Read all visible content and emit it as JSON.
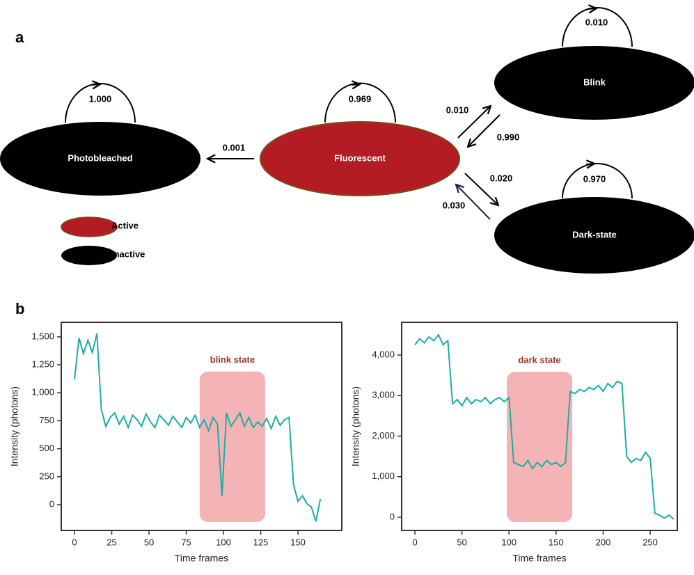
{
  "panel_labels": [
    "a",
    "b"
  ],
  "diagram": {
    "nodes": [
      "Photobleached",
      "Fluorescent",
      "Blink",
      "Dark-state"
    ],
    "self_loops": [
      "1.000",
      "0.969",
      "0.010",
      "0.970"
    ],
    "transitions": [
      "0.001",
      "0.010",
      "0.990",
      "0.020",
      "0.030"
    ],
    "legend": [
      "Active",
      "Inactive"
    ]
  },
  "chart_data": [
    {
      "type": "line",
      "x_label": "Time frames",
      "y_label": "Intensity (photons)",
      "color": "#1aada8",
      "x": [
        0,
        3,
        6,
        9,
        12,
        15,
        18,
        21,
        24,
        27,
        30,
        33,
        36,
        39,
        42,
        45,
        48,
        51,
        54,
        57,
        60,
        63,
        66,
        69,
        72,
        75,
        78,
        81,
        84,
        87,
        90,
        93,
        96,
        99,
        102,
        105,
        108,
        111,
        114,
        117,
        120,
        123,
        126,
        129,
        132,
        135,
        138,
        141,
        144,
        147,
        150,
        153,
        156,
        159,
        162,
        165
      ],
      "values": [
        1120,
        1490,
        1350,
        1470,
        1360,
        1530,
        850,
        700,
        780,
        820,
        720,
        790,
        690,
        800,
        760,
        700,
        810,
        740,
        690,
        800,
        760,
        710,
        790,
        740,
        690,
        780,
        730,
        800,
        690,
        760,
        660,
        780,
        720,
        80,
        820,
        700,
        760,
        820,
        700,
        780,
        690,
        740,
        700,
        770,
        680,
        790,
        710,
        760,
        780,
        180,
        30,
        80,
        10,
        -20,
        -150,
        50
      ],
      "xlim": [
        -8.9,
        179.4
      ],
      "ylim": [
        -230,
        1630
      ],
      "xticks": [
        0,
        25,
        50,
        75,
        100,
        125,
        150
      ],
      "yticks": [
        0,
        250,
        500,
        750,
        {
          "value": 1000,
          "label": "1,000"
        },
        {
          "value": 1250,
          "label": "1,250"
        },
        {
          "value": 1500,
          "label": "1,500"
        }
      ],
      "highlight": {
        "label": "blink state",
        "xrange": [
          84,
          128
        ],
        "yrange": [
          -155,
          1190
        ]
      }
    },
    {
      "type": "line",
      "x_label": "Time frames",
      "y_label": "Intensity (photons)",
      "color": "#1aada8",
      "x": [
        0,
        5,
        10,
        15,
        20,
        25,
        30,
        35,
        40,
        45,
        50,
        55,
        60,
        65,
        70,
        75,
        80,
        85,
        90,
        95,
        100,
        105,
        110,
        115,
        120,
        125,
        130,
        135,
        140,
        145,
        150,
        155,
        160,
        165,
        170,
        175,
        180,
        185,
        190,
        195,
        200,
        205,
        210,
        215,
        220,
        225,
        230,
        235,
        240,
        245,
        250,
        255,
        260,
        265,
        270,
        275
      ],
      "values": [
        4250,
        4400,
        4300,
        4450,
        4350,
        4500,
        4250,
        4350,
        2800,
        2900,
        2750,
        2950,
        2800,
        2900,
        2850,
        2950,
        2800,
        2900,
        2950,
        2850,
        2950,
        1350,
        1300,
        1250,
        1400,
        1200,
        1350,
        1250,
        1400,
        1300,
        1350,
        1250,
        1350,
        3100,
        3050,
        3150,
        3100,
        3200,
        3150,
        3250,
        3100,
        3300,
        3200,
        3350,
        3300,
        1500,
        1350,
        1450,
        1400,
        1600,
        1450,
        100,
        50,
        -20,
        50,
        -50
      ],
      "xlim": [
        -14.1,
        278.8
      ],
      "ylim": [
        -326,
        4807
      ],
      "xticks": [
        0,
        50,
        100,
        150,
        200,
        250
      ],
      "yticks": [
        0,
        {
          "value": 1000,
          "label": "1,000"
        },
        {
          "value": 2000,
          "label": "2,000"
        },
        {
          "value": 3000,
          "label": "3,000"
        },
        {
          "value": 4000,
          "label": "4,000"
        }
      ],
      "highlight": {
        "label": "dark state",
        "xrange": [
          97.6,
          167.2
        ],
        "yrange": [
          -120,
          3588
        ]
      }
    }
  ]
}
